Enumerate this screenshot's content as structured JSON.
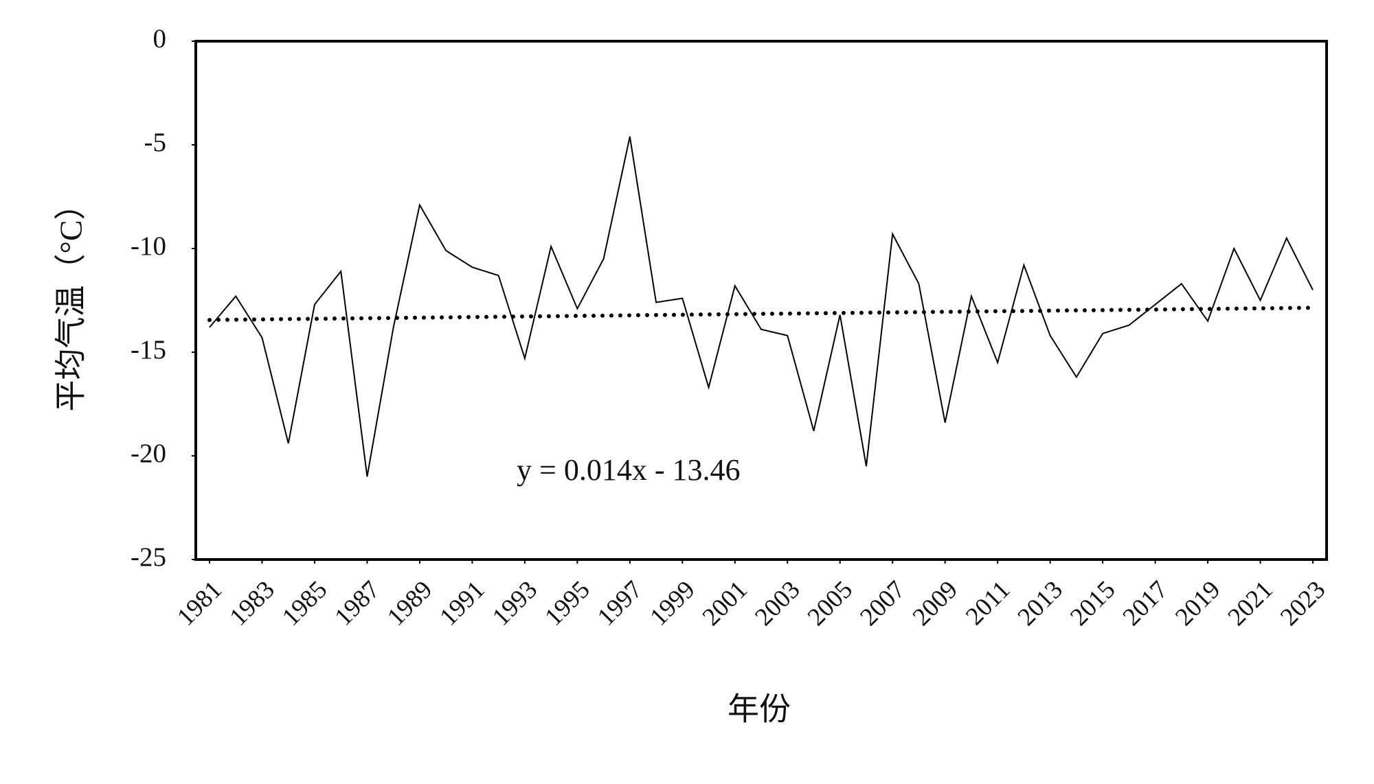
{
  "chart_data": {
    "type": "line",
    "x_label": "年份",
    "y_label": "平均气温（°C）",
    "x": [
      1981,
      1982,
      1983,
      1984,
      1985,
      1986,
      1987,
      1988,
      1989,
      1990,
      1991,
      1992,
      1993,
      1994,
      1995,
      1996,
      1997,
      1998,
      1999,
      2000,
      2001,
      2002,
      2003,
      2004,
      2005,
      2006,
      2007,
      2008,
      2009,
      2010,
      2011,
      2012,
      2013,
      2014,
      2015,
      2016,
      2017,
      2018,
      2019,
      2020,
      2021,
      2022,
      2023
    ],
    "series": [
      {
        "color": "#000000",
        "values": [
          -13.8,
          -12.3,
          -14.3,
          -19.4,
          -12.7,
          -11.1,
          -21.0,
          -13.8,
          -7.9,
          -10.1,
          -10.9,
          -11.3,
          -15.3,
          -9.9,
          -12.9,
          -10.5,
          -4.6,
          -12.6,
          -12.4,
          -16.7,
          -11.8,
          -13.9,
          -14.2,
          -18.8,
          -13.2,
          -20.5,
          -9.3,
          -11.7,
          -18.4,
          -12.3,
          -15.5,
          -10.8,
          -14.2,
          -16.2,
          -14.1,
          -13.7,
          -12.7,
          -11.7,
          -13.5,
          -10.0,
          -12.5,
          -9.5,
          -12.0
        ]
      }
    ],
    "trendline": {
      "slope": 0.014,
      "intercept": -13.46,
      "label": "y = 0.014x - 13.46",
      "style": "dotted"
    },
    "xlim": [
      1981,
      2023
    ],
    "xticks": [
      1981,
      1983,
      1985,
      1987,
      1989,
      1991,
      1993,
      1995,
      1997,
      1999,
      2001,
      2003,
      2005,
      2007,
      2009,
      2011,
      2013,
      2015,
      2017,
      2019,
      2021,
      2023
    ],
    "ylim": [
      -25,
      0
    ],
    "yticks": [
      -25,
      -20,
      -15,
      -10,
      -5,
      0
    ],
    "grid": false
  }
}
